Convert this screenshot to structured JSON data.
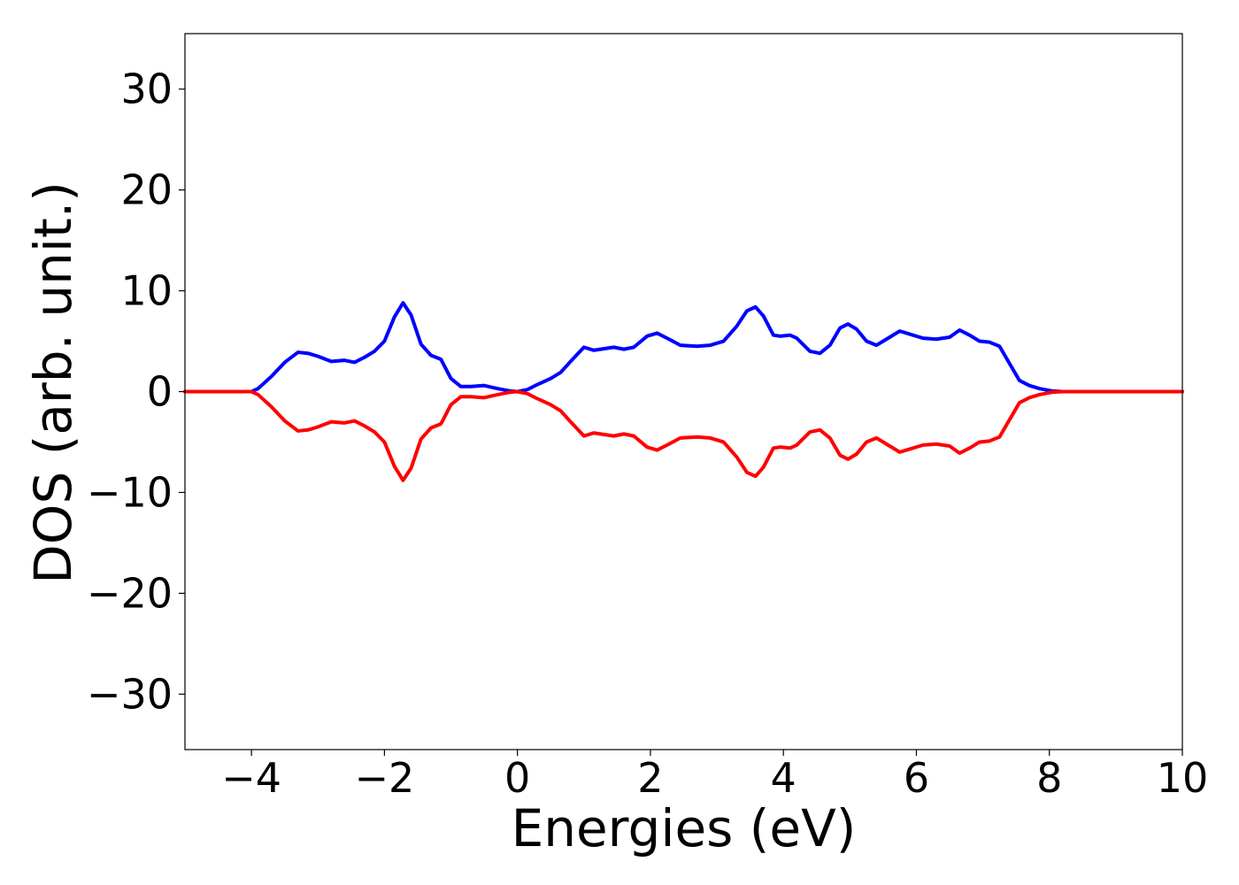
{
  "chart_data": {
    "type": "line",
    "title": "",
    "xlabel": "Energies (eV)",
    "ylabel": "DOS (arb. unit.)",
    "xlim": [
      -5,
      10
    ],
    "ylim": [
      -35.5,
      35.5
    ],
    "xticks": [
      -4,
      -2,
      0,
      2,
      4,
      6,
      8,
      10
    ],
    "xtick_labels": [
      "−4",
      "−2",
      "0",
      "2",
      "4",
      "6",
      "8",
      "10"
    ],
    "yticks": [
      30,
      20,
      10,
      0,
      -10,
      -20,
      -30
    ],
    "ytick_labels": [
      "30",
      "20",
      "10",
      "0",
      "−10",
      "−20",
      "−30"
    ],
    "grid": false,
    "legend": "none",
    "series": [
      {
        "color": "#0000ff",
        "x": [
          -5,
          -4,
          -3.9,
          -3.7,
          -3.5,
          -3.3,
          -3.15,
          -3.0,
          -2.8,
          -2.6,
          -2.45,
          -2.3,
          -2.15,
          -2.0,
          -1.85,
          -1.72,
          -1.6,
          -1.45,
          -1.3,
          -1.15,
          -1.0,
          -0.85,
          -0.7,
          -0.5,
          -0.3,
          -0.1,
          0.0,
          0.15,
          0.3,
          0.5,
          0.65,
          0.8,
          1.0,
          1.15,
          1.25,
          1.45,
          1.6,
          1.75,
          1.95,
          2.1,
          2.25,
          2.45,
          2.7,
          2.9,
          3.1,
          3.3,
          3.45,
          3.58,
          3.7,
          3.85,
          3.95,
          4.1,
          4.2,
          4.4,
          4.55,
          4.7,
          4.85,
          4.97,
          5.1,
          5.25,
          5.4,
          5.55,
          5.75,
          5.9,
          6.1,
          6.3,
          6.5,
          6.65,
          6.8,
          6.95,
          7.1,
          7.25,
          7.4,
          7.55,
          7.7,
          7.85,
          8.05,
          8.2,
          10
        ],
        "values": [
          0,
          0,
          0.3,
          1.5,
          2.9,
          3.9,
          3.8,
          3.5,
          3.0,
          3.1,
          2.9,
          3.4,
          4.0,
          5.0,
          7.4,
          8.8,
          7.6,
          4.7,
          3.6,
          3.2,
          1.3,
          0.5,
          0.5,
          0.6,
          0.3,
          0.05,
          0.0,
          0.2,
          0.7,
          1.3,
          1.9,
          3.0,
          4.4,
          4.1,
          4.2,
          4.4,
          4.2,
          4.4,
          5.5,
          5.8,
          5.3,
          4.6,
          4.5,
          4.6,
          5.0,
          6.5,
          8.0,
          8.4,
          7.5,
          5.6,
          5.5,
          5.6,
          5.3,
          4.0,
          3.8,
          4.6,
          6.3,
          6.7,
          6.2,
          5.0,
          4.6,
          5.2,
          6.0,
          5.7,
          5.3,
          5.2,
          5.4,
          6.1,
          5.6,
          5.0,
          4.9,
          4.5,
          2.8,
          1.1,
          0.6,
          0.3,
          0.05,
          0,
          0
        ]
      },
      {
        "color": "#ff0000",
        "x": [
          -5,
          -4,
          -3.9,
          -3.7,
          -3.5,
          -3.3,
          -3.15,
          -3.0,
          -2.8,
          -2.6,
          -2.45,
          -2.3,
          -2.15,
          -2.0,
          -1.85,
          -1.72,
          -1.6,
          -1.45,
          -1.3,
          -1.15,
          -1.0,
          -0.85,
          -0.7,
          -0.5,
          -0.3,
          -0.1,
          0.0,
          0.15,
          0.3,
          0.5,
          0.65,
          0.8,
          1.0,
          1.15,
          1.25,
          1.45,
          1.6,
          1.75,
          1.95,
          2.1,
          2.25,
          2.45,
          2.7,
          2.9,
          3.1,
          3.3,
          3.45,
          3.58,
          3.7,
          3.85,
          3.95,
          4.1,
          4.2,
          4.4,
          4.55,
          4.7,
          4.85,
          4.97,
          5.1,
          5.25,
          5.4,
          5.55,
          5.75,
          5.9,
          6.1,
          6.3,
          6.5,
          6.65,
          6.8,
          6.95,
          7.1,
          7.25,
          7.4,
          7.55,
          7.7,
          7.85,
          8.05,
          8.2,
          10
        ],
        "values": [
          0,
          0,
          -0.3,
          -1.5,
          -2.9,
          -3.9,
          -3.8,
          -3.5,
          -3.0,
          -3.1,
          -2.9,
          -3.4,
          -4.0,
          -5.0,
          -7.4,
          -8.8,
          -7.6,
          -4.7,
          -3.6,
          -3.2,
          -1.3,
          -0.5,
          -0.5,
          -0.6,
          -0.3,
          -0.05,
          0.0,
          -0.2,
          -0.7,
          -1.3,
          -1.9,
          -3.0,
          -4.4,
          -4.1,
          -4.2,
          -4.4,
          -4.2,
          -4.4,
          -5.5,
          -5.8,
          -5.3,
          -4.6,
          -4.5,
          -4.6,
          -5.0,
          -6.5,
          -8.0,
          -8.4,
          -7.5,
          -5.6,
          -5.5,
          -5.6,
          -5.3,
          -4.0,
          -3.8,
          -4.6,
          -6.3,
          -6.7,
          -6.2,
          -5.0,
          -4.6,
          -5.2,
          -6.0,
          -5.7,
          -5.3,
          -5.2,
          -5.4,
          -6.1,
          -5.6,
          -5.0,
          -4.9,
          -4.5,
          -2.8,
          -1.1,
          -0.6,
          -0.3,
          -0.05,
          0,
          0
        ]
      }
    ]
  }
}
